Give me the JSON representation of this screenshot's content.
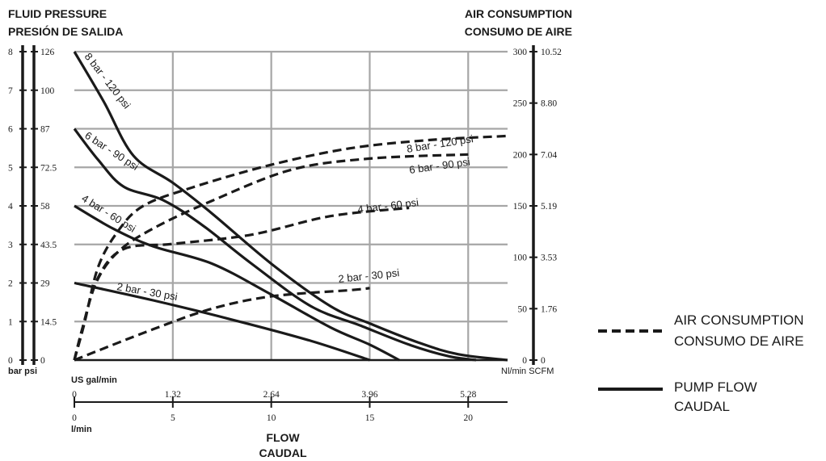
{
  "colors": {
    "grid": "#a6a6a6",
    "ink": "#1a1a1a",
    "background": "#ffffff"
  },
  "chart_data": {
    "type": "line",
    "title_left": [
      "FLUID PRESSURE",
      "PRESIÓN DE SALIDA"
    ],
    "title_right": [
      "AIR CONSUMPTION",
      "CONSUMO DE AIRE"
    ],
    "x_title": [
      "FLOW",
      "CAUDAL"
    ],
    "x_unit_usgal": "US gal/min",
    "x_unit_lmin": "l/min",
    "y_left_units": "bar psi",
    "y_right_units": "Nl/min SCFM",
    "xlim": [
      0,
      22
    ],
    "grid": true,
    "x_ticks_lmin": [
      "0",
      "5",
      "10",
      "15",
      "20"
    ],
    "x_ticks_usgal": [
      "0",
      "1.32",
      "2.64",
      "3.96",
      "5.28"
    ],
    "y_ticks_bar": [
      "0",
      "1",
      "2",
      "3",
      "4",
      "5",
      "6",
      "7",
      "8"
    ],
    "y_ticks_psi": [
      "0",
      "14.5",
      "29",
      "43.5",
      "58",
      "72.5",
      "87",
      "100",
      "126"
    ],
    "y2_ticks_nlmin": [
      "0",
      "50",
      "100",
      "150",
      "200",
      "250",
      "300"
    ],
    "y2_ticks_scfm": [
      "0",
      "1.76",
      "3.53",
      "5.19",
      "7.04",
      "8.80",
      "10.52"
    ],
    "ylim_bar": [
      0,
      8
    ],
    "ylim_nlmin": [
      0,
      300
    ],
    "legend": {
      "position": "right",
      "entries": [
        {
          "style": "dashed",
          "labels": [
            "AIR CONSUMPTION",
            "CONSUMO DE AIRE"
          ]
        },
        {
          "style": "solid",
          "labels": [
            "PUMP FLOW",
            "CAUDAL"
          ]
        }
      ]
    },
    "pump_flow_series": [
      {
        "name": "8 bar - 120 psi",
        "axis": "bar",
        "points": [
          [
            0,
            8
          ],
          [
            1.5,
            6.7
          ],
          [
            3,
            5.3
          ],
          [
            5,
            4.6
          ],
          [
            7,
            3.8
          ],
          [
            10,
            2.5
          ],
          [
            13,
            1.4
          ],
          [
            15,
            0.95
          ],
          [
            17.5,
            0.45
          ],
          [
            19.5,
            0.15
          ],
          [
            22,
            0
          ]
        ]
      },
      {
        "name": "6 bar - 90 psi",
        "axis": "bar",
        "points": [
          [
            0,
            6
          ],
          [
            1.2,
            5.2
          ],
          [
            2.5,
            4.5
          ],
          [
            4.5,
            4.15
          ],
          [
            6.5,
            3.5
          ],
          [
            9,
            2.5
          ],
          [
            12,
            1.4
          ],
          [
            14.5,
            0.9
          ],
          [
            17,
            0.4
          ],
          [
            19,
            0.1
          ],
          [
            20.4,
            0
          ]
        ]
      },
      {
        "name": "4 bar - 60 psi",
        "axis": "bar",
        "points": [
          [
            0,
            4
          ],
          [
            2,
            3.4
          ],
          [
            4,
            2.95
          ],
          [
            7,
            2.5
          ],
          [
            10,
            1.7
          ],
          [
            13,
            0.85
          ],
          [
            15,
            0.4
          ],
          [
            16.5,
            0
          ]
        ]
      },
      {
        "name": "2 bar - 30 psi",
        "axis": "bar",
        "points": [
          [
            0,
            2
          ],
          [
            4,
            1.55
          ],
          [
            8,
            1.05
          ],
          [
            12,
            0.5
          ],
          [
            15,
            0
          ]
        ]
      }
    ],
    "air_consumption_series": [
      {
        "name": "8 bar - 120 psi",
        "axis": "nlmin",
        "points": [
          [
            0,
            0
          ],
          [
            0.5,
            35
          ],
          [
            1.2,
            90
          ],
          [
            2.2,
            125
          ],
          [
            3.5,
            150
          ],
          [
            6,
            168
          ],
          [
            10,
            190
          ],
          [
            14,
            206
          ],
          [
            18,
            214
          ],
          [
            22,
            218
          ]
        ]
      },
      {
        "name": "6 bar - 90 psi",
        "axis": "nlmin",
        "points": [
          [
            0,
            0
          ],
          [
            0.4,
            30
          ],
          [
            1.1,
            75
          ],
          [
            2.2,
            105
          ],
          [
            4,
            128
          ],
          [
            7,
            155
          ],
          [
            11,
            185
          ],
          [
            15,
            196
          ],
          [
            20,
            200
          ]
        ]
      },
      {
        "name": "4 bar - 60 psi",
        "axis": "nlmin",
        "points": [
          [
            0,
            0
          ],
          [
            0.4,
            30
          ],
          [
            1.2,
            80
          ],
          [
            2.5,
            108
          ],
          [
            5,
            113
          ],
          [
            9,
            122
          ],
          [
            13,
            140
          ],
          [
            17,
            148
          ]
        ]
      },
      {
        "name": "2 bar - 30 psi",
        "axis": "nlmin",
        "points": [
          [
            0,
            0
          ],
          [
            4,
            30
          ],
          [
            7,
            50
          ],
          [
            10,
            62
          ],
          [
            14,
            68
          ],
          [
            15,
            70
          ]
        ]
      }
    ]
  }
}
